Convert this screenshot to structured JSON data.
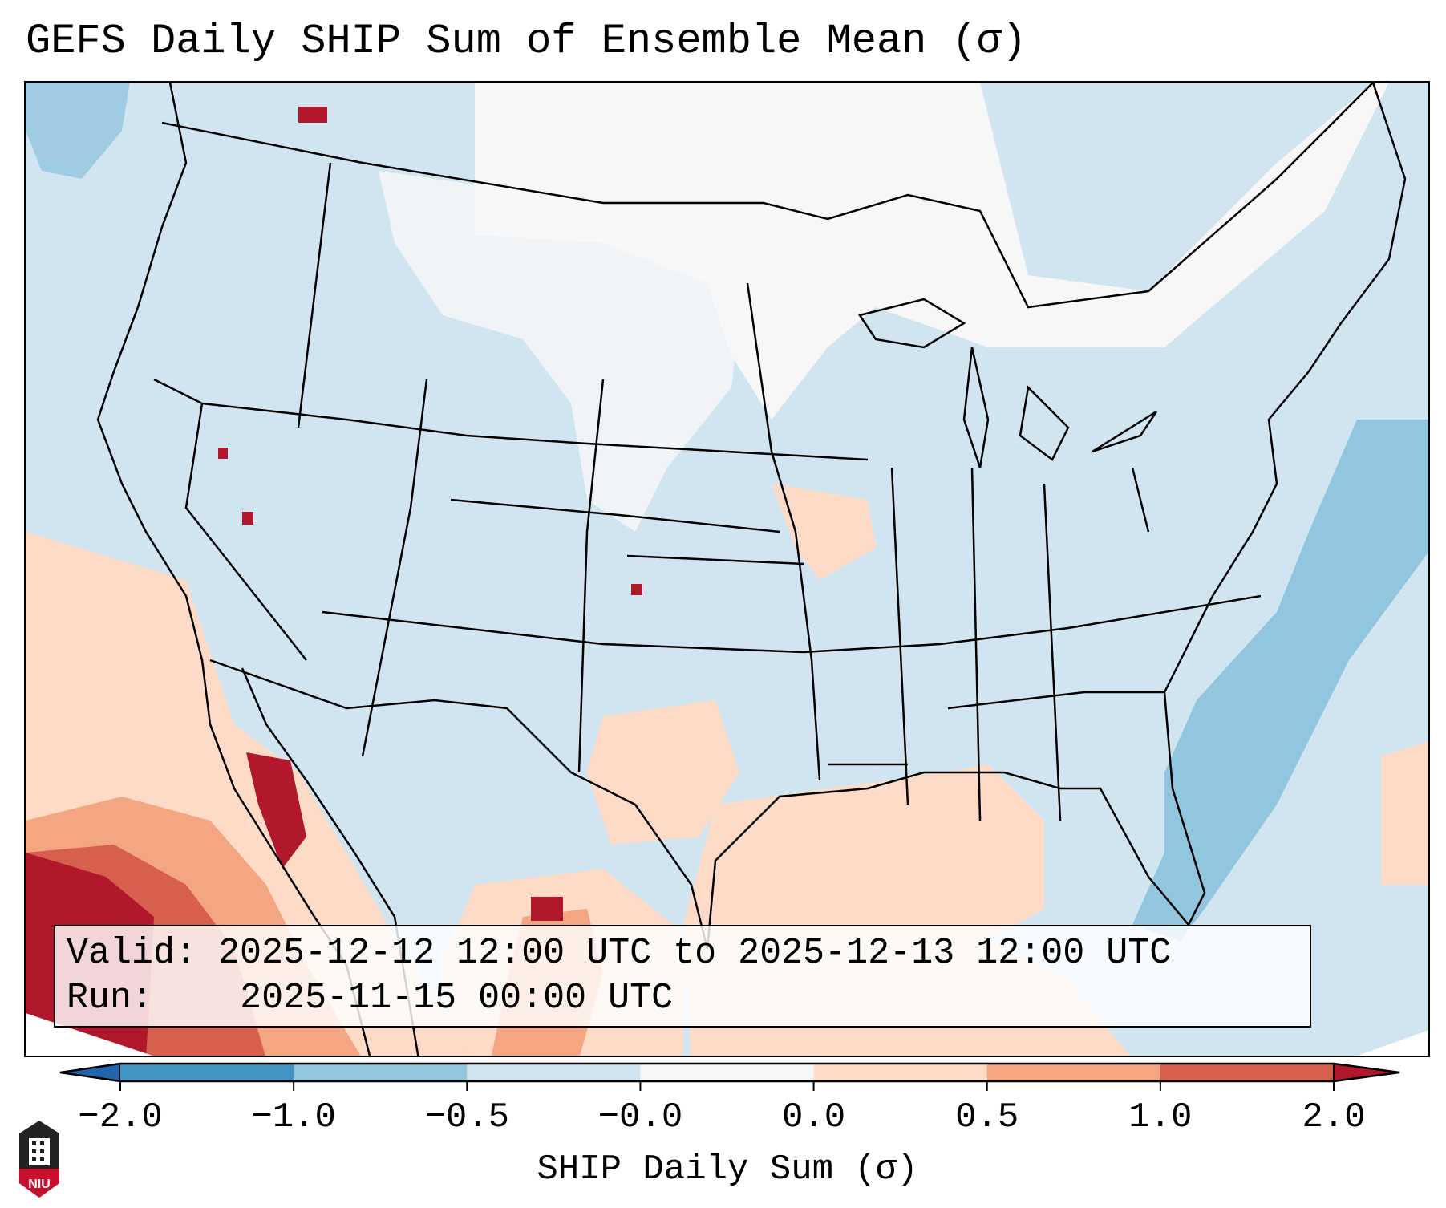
{
  "title": "GEFS Daily SHIP Sum of Ensemble Mean (σ)",
  "info": {
    "valid_label": "Valid:",
    "valid_value": "2025-12-12 12:00 UTC to 2025-12-13 12:00 UTC",
    "run_label": "Run:",
    "run_value": "2025-11-15 00:00 UTC"
  },
  "logo_text": "NIU",
  "chart_data": {
    "type": "heatmap",
    "title": "GEFS Daily SHIP Sum of Ensemble Mean (σ)",
    "colorbar": {
      "label": "SHIP Daily Sum (σ)",
      "tick_labels": [
        "-2.0",
        "-1.0",
        "-0.5",
        "-0.0",
        "0.0",
        "0.5",
        "1.0",
        "2.0"
      ],
      "bins": [
        {
          "range": "< -2.0",
          "color": "#2166ac"
        },
        {
          "range": "-2.0 to -1.0",
          "color": "#4393c3"
        },
        {
          "range": "-1.0 to -0.5",
          "color": "#92c5de"
        },
        {
          "range": "-0.5 to -0.0",
          "color": "#d1e5f0"
        },
        {
          "range": "-0.0 to 0.0",
          "color": "#f7f7f7"
        },
        {
          "range": "0.0 to 0.5",
          "color": "#fddbc7"
        },
        {
          "range": "0.5 to 1.0",
          "color": "#f4a582"
        },
        {
          "range": "1.0 to 2.0",
          "color": "#d6604d"
        },
        {
          "range": "> 2.0",
          "color": "#b2182b"
        }
      ],
      "extend": "both",
      "orientation": "horizontal"
    },
    "domain": "Contiguous United States, with near-zero-to-slightly-negative values over most land, negative values over the western Atlantic, and positive values over the Gulf of Mexico, northern Mexico and the eastern Pacific off Baja California"
  }
}
